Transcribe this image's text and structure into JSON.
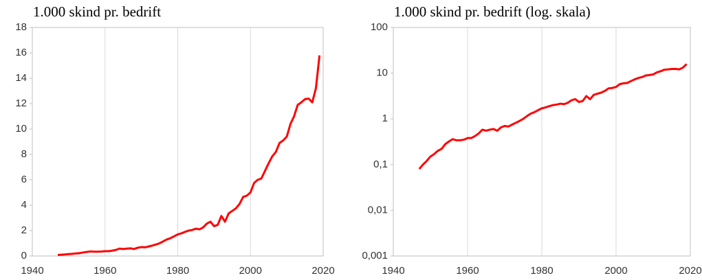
{
  "chart_data": [
    {
      "type": "line",
      "title": "1.000 skind pr. bedrift",
      "x": [
        1947,
        1948,
        1949,
        1950,
        1951,
        1952,
        1953,
        1954,
        1955,
        1956,
        1957,
        1958,
        1959,
        1960,
        1961,
        1962,
        1963,
        1964,
        1965,
        1966,
        1967,
        1968,
        1969,
        1970,
        1971,
        1972,
        1973,
        1974,
        1975,
        1976,
        1977,
        1978,
        1979,
        1980,
        1981,
        1982,
        1983,
        1984,
        1985,
        1986,
        1987,
        1988,
        1989,
        1990,
        1991,
        1992,
        1993,
        1994,
        1995,
        1996,
        1997,
        1998,
        1999,
        2000,
        2001,
        2002,
        2003,
        2004,
        2005,
        2006,
        2007,
        2008,
        2009,
        2010,
        2011,
        2012,
        2013,
        2014,
        2015,
        2016,
        2017,
        2018,
        2019
      ],
      "series": [
        {
          "color": "#ff0000",
          "values": [
            0.08,
            0.1,
            0.12,
            0.15,
            0.17,
            0.2,
            0.22,
            0.28,
            0.32,
            0.36,
            0.34,
            0.34,
            0.35,
            0.38,
            0.38,
            0.42,
            0.48,
            0.58,
            0.55,
            0.58,
            0.6,
            0.55,
            0.65,
            0.7,
            0.68,
            0.75,
            0.82,
            0.9,
            1.0,
            1.15,
            1.3,
            1.4,
            1.55,
            1.7,
            1.78,
            1.9,
            2.0,
            2.05,
            2.15,
            2.1,
            2.25,
            2.55,
            2.7,
            2.35,
            2.45,
            3.15,
            2.7,
            3.35,
            3.55,
            3.75,
            4.1,
            4.65,
            4.75,
            5.0,
            5.75,
            6.0,
            6.1,
            6.7,
            7.3,
            7.85,
            8.2,
            8.9,
            9.1,
            9.4,
            10.4,
            11.0,
            11.9,
            12.1,
            12.35,
            12.4,
            12.1,
            13.2,
            15.8
          ]
        }
      ],
      "xlim": [
        1940,
        2020
      ],
      "xticks": [
        1940,
        1960,
        1980,
        2000,
        2020
      ],
      "ylim": [
        0,
        18
      ],
      "yticks": [
        0,
        2,
        4,
        6,
        8,
        10,
        12,
        14,
        16,
        18
      ],
      "grid": "x"
    },
    {
      "type": "line",
      "title": "1.000 skind pr. bedrift (log. skala)",
      "log_scale": "y",
      "x": [
        1947,
        1948,
        1949,
        1950,
        1951,
        1952,
        1953,
        1954,
        1955,
        1956,
        1957,
        1958,
        1959,
        1960,
        1961,
        1962,
        1963,
        1964,
        1965,
        1966,
        1967,
        1968,
        1969,
        1970,
        1971,
        1972,
        1973,
        1974,
        1975,
        1976,
        1977,
        1978,
        1979,
        1980,
        1981,
        1982,
        1983,
        1984,
        1985,
        1986,
        1987,
        1988,
        1989,
        1990,
        1991,
        1992,
        1993,
        1994,
        1995,
        1996,
        1997,
        1998,
        1999,
        2000,
        2001,
        2002,
        2003,
        2004,
        2005,
        2006,
        2007,
        2008,
        2009,
        2010,
        2011,
        2012,
        2013,
        2014,
        2015,
        2016,
        2017,
        2018,
        2019
      ],
      "series": [
        {
          "color": "#ff0000",
          "values": [
            0.08,
            0.1,
            0.12,
            0.15,
            0.17,
            0.2,
            0.22,
            0.28,
            0.32,
            0.36,
            0.34,
            0.34,
            0.35,
            0.38,
            0.38,
            0.42,
            0.48,
            0.58,
            0.55,
            0.58,
            0.6,
            0.55,
            0.65,
            0.7,
            0.68,
            0.75,
            0.82,
            0.9,
            1.0,
            1.15,
            1.3,
            1.4,
            1.55,
            1.7,
            1.78,
            1.9,
            2.0,
            2.05,
            2.15,
            2.1,
            2.25,
            2.55,
            2.7,
            2.35,
            2.45,
            3.15,
            2.7,
            3.35,
            3.55,
            3.75,
            4.1,
            4.65,
            4.75,
            5.0,
            5.75,
            6.0,
            6.1,
            6.7,
            7.3,
            7.85,
            8.2,
            8.9,
            9.1,
            9.4,
            10.4,
            11.0,
            11.9,
            12.1,
            12.35,
            12.4,
            12.1,
            13.2,
            15.8
          ]
        }
      ],
      "xlim": [
        1940,
        2020
      ],
      "xticks": [
        1940,
        1960,
        1980,
        2000,
        2020
      ],
      "ylim": [
        0.001,
        100
      ],
      "yticks": [
        {
          "value": 0.001,
          "label": "0,001"
        },
        {
          "value": 0.01,
          "label": "0,01"
        },
        {
          "value": 0.1,
          "label": "0,1"
        },
        1,
        10,
        100
      ],
      "grid": "x"
    }
  ]
}
